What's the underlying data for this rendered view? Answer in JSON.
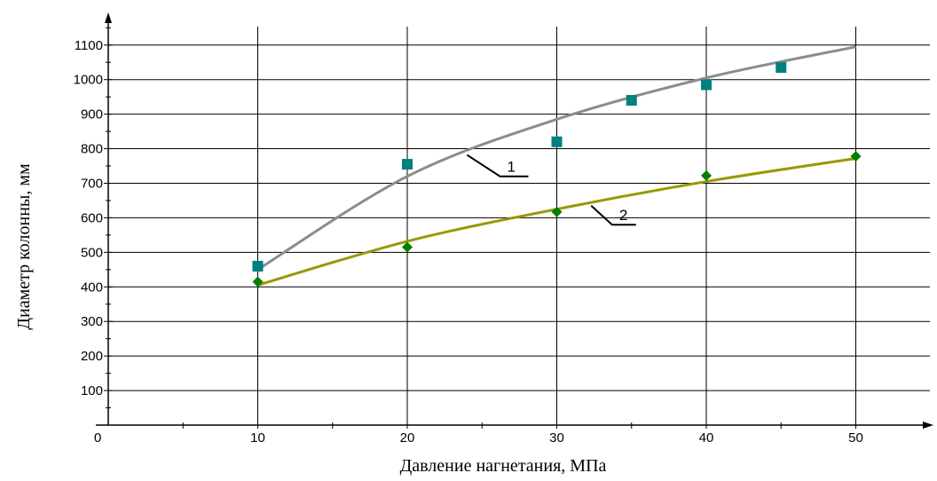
{
  "chart_data": {
    "type": "scatter",
    "xlabel": "Давление нагнетания, МПа",
    "ylabel": "Диаметр колонны, мм",
    "xlim": [
      0,
      55
    ],
    "ylim": [
      0,
      1150
    ],
    "x_ticks": [
      10,
      20,
      30,
      40,
      50
    ],
    "y_ticks": [
      100,
      200,
      300,
      400,
      500,
      600,
      700,
      800,
      900,
      1000,
      1100
    ],
    "origin_label": "0",
    "grid": true,
    "series": [
      {
        "name": "1",
        "color": "#008080",
        "marker": "square",
        "points": [
          {
            "x": 10,
            "y": 460
          },
          {
            "x": 20,
            "y": 755
          },
          {
            "x": 30,
            "y": 820
          },
          {
            "x": 35,
            "y": 940
          },
          {
            "x": 40,
            "y": 985
          },
          {
            "x": 45,
            "y": 1035
          }
        ],
        "trend": {
          "color": "#8c8c8c",
          "points": [
            {
              "x": 10,
              "y": 450
            },
            {
              "x": 20,
              "y": 720
            },
            {
              "x": 30,
              "y": 885
            },
            {
              "x": 40,
              "y": 1005
            },
            {
              "x": 50,
              "y": 1095
            }
          ]
        }
      },
      {
        "name": "2",
        "color": "#008000",
        "marker": "diamond",
        "points": [
          {
            "x": 10,
            "y": 415
          },
          {
            "x": 20,
            "y": 515
          },
          {
            "x": 30,
            "y": 617
          },
          {
            "x": 40,
            "y": 722
          },
          {
            "x": 50,
            "y": 778
          }
        ],
        "trend": {
          "color": "#999900",
          "points": [
            {
              "x": 10,
              "y": 405
            },
            {
              "x": 20,
              "y": 532
            },
            {
              "x": 30,
              "y": 625
            },
            {
              "x": 40,
              "y": 705
            },
            {
              "x": 50,
              "y": 772
            }
          ]
        }
      }
    ]
  }
}
